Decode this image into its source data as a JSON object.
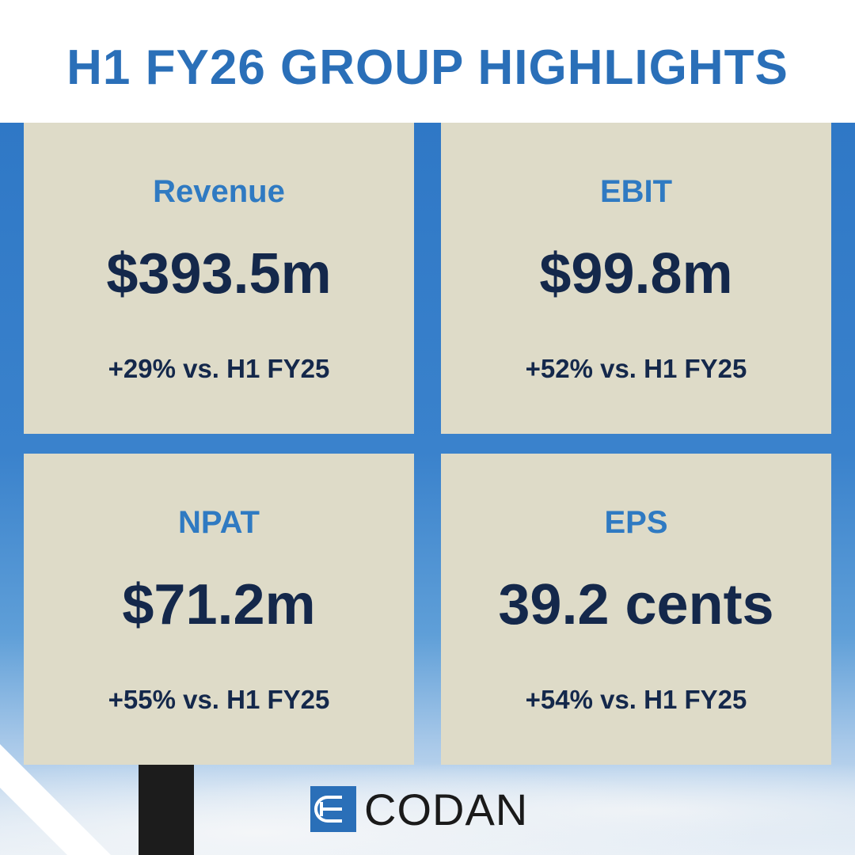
{
  "header": {
    "title": "H1 FY26 GROUP HIGHLIGHTS"
  },
  "cards": [
    {
      "label": "Revenue",
      "value": "$393.5m",
      "change": "+29% vs. H1 FY25"
    },
    {
      "label": "EBIT",
      "value": "$99.8m",
      "change": "+52% vs. H1 FY25"
    },
    {
      "label": "NPAT",
      "value": "$71.2m",
      "change": "+55% vs. H1 FY25"
    },
    {
      "label": "EPS",
      "value": "39.2 cents",
      "change": "+54% vs. H1 FY25"
    }
  ],
  "footer": {
    "logo": "CODAN"
  }
}
